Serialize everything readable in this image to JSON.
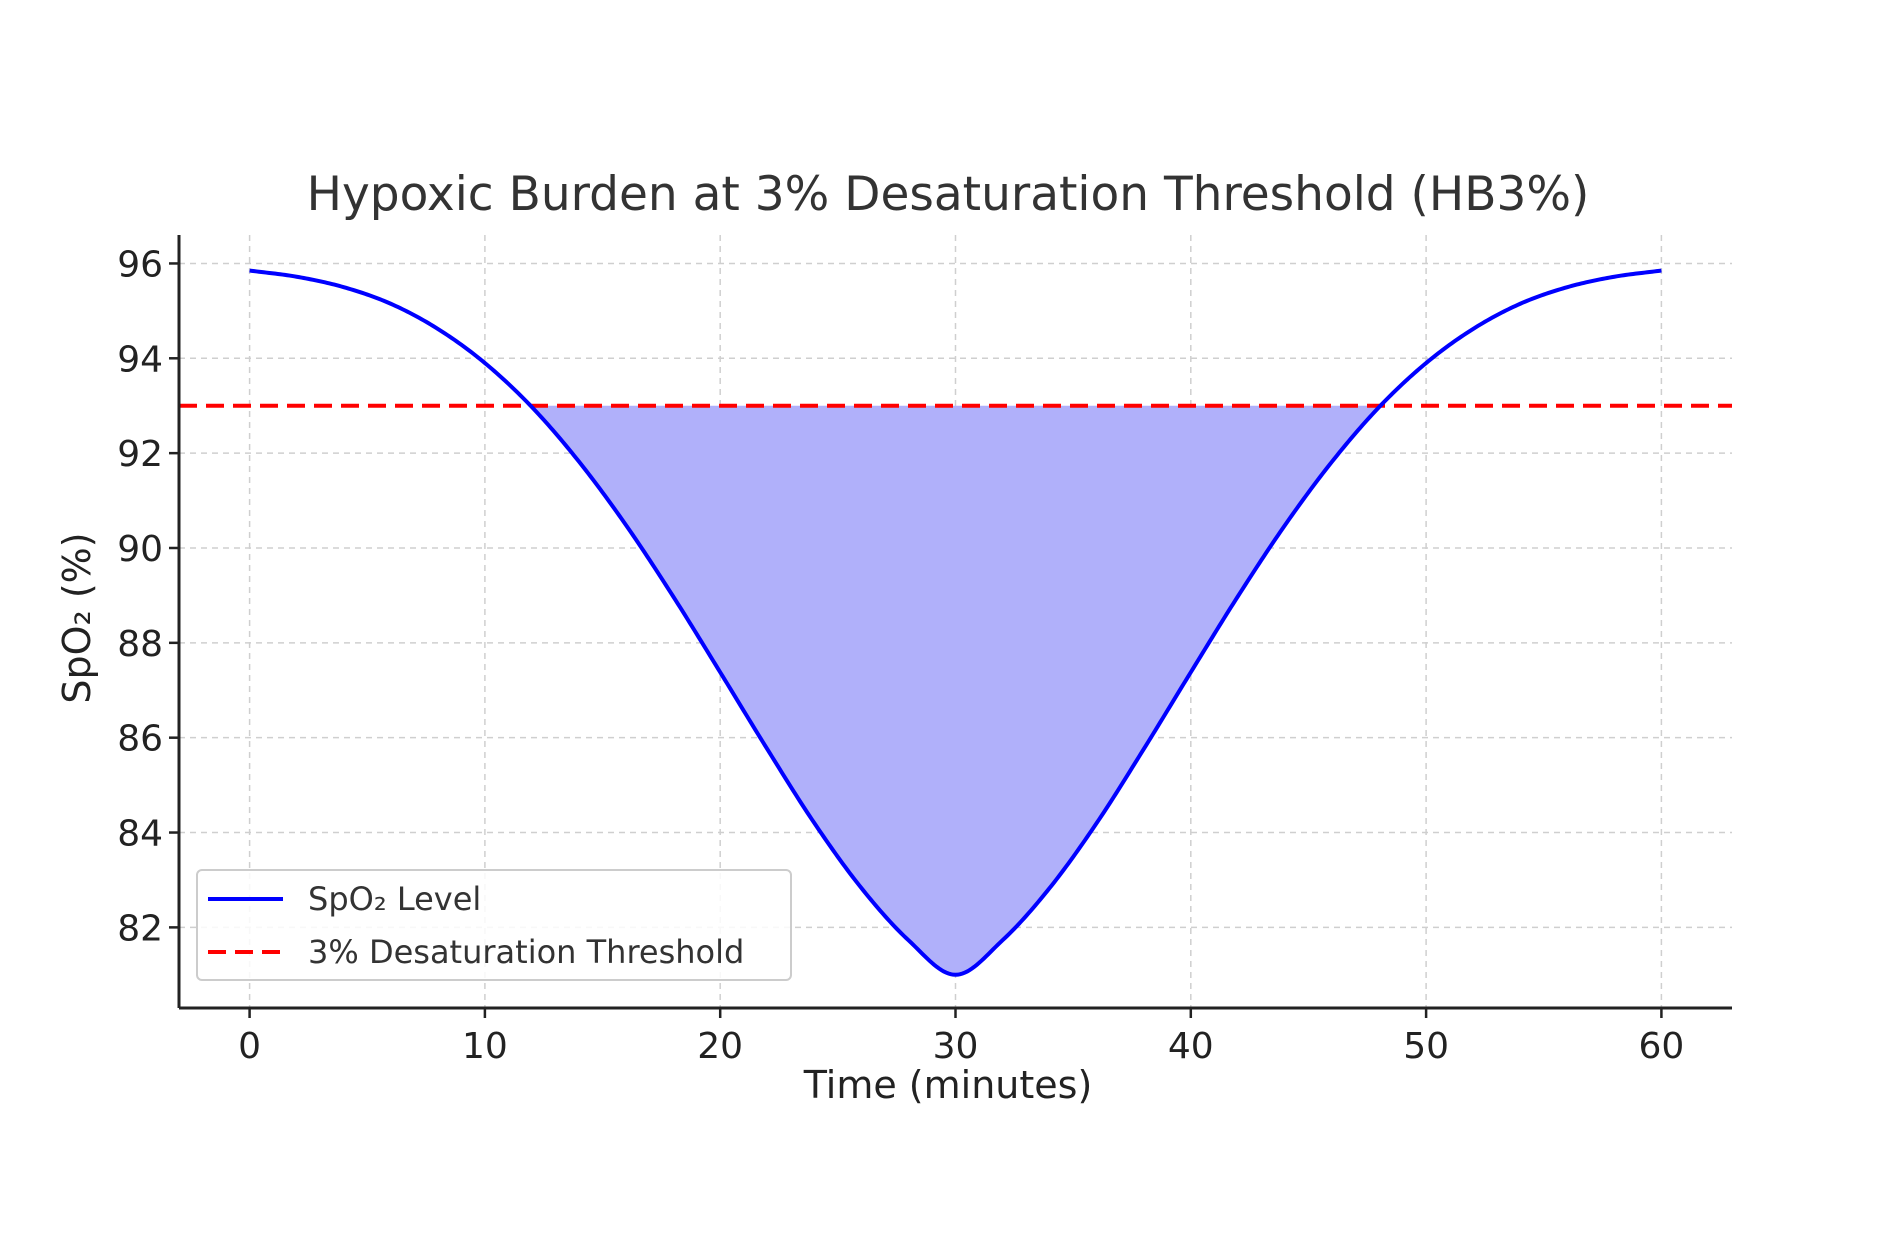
{
  "chart_data": {
    "type": "line",
    "title": "Hypoxic Burden at 3% Desaturation Threshold (HB3%)",
    "xlabel": "Time (minutes)",
    "ylabel": "SpO₂ (%)",
    "xlim": [
      -3,
      63
    ],
    "ylim": [
      80.3,
      96.6
    ],
    "xticks": [
      0,
      10,
      20,
      30,
      40,
      50,
      60
    ],
    "xtick_labels": [
      "0",
      "10",
      "20",
      "30",
      "40",
      "50",
      "60"
    ],
    "yticks": [
      82,
      84,
      86,
      88,
      90,
      92,
      94,
      96
    ],
    "ytick_labels": [
      "82",
      "84",
      "86",
      "88",
      "90",
      "92",
      "94",
      "96"
    ],
    "grid": true,
    "legend_position": "lower-left",
    "series": [
      {
        "name": "SpO₂ Level",
        "style": "solid",
        "color": "#0000ff",
        "x": [
          0,
          2,
          4,
          6,
          8,
          10,
          12,
          14,
          16,
          18,
          20,
          22,
          24,
          26,
          28,
          30,
          32,
          34,
          36,
          38,
          40,
          42,
          44,
          46,
          48,
          50,
          52,
          54,
          56,
          58,
          60
        ],
        "y": [
          95.85,
          95.72,
          95.5,
          95.15,
          94.62,
          93.9,
          92.97,
          91.82,
          90.48,
          88.98,
          87.38,
          85.76,
          84.2,
          82.83,
          81.73,
          81.0,
          81.73,
          82.83,
          84.2,
          85.76,
          87.38,
          88.98,
          90.48,
          91.82,
          92.97,
          93.9,
          94.62,
          95.15,
          95.5,
          95.72,
          95.85
        ]
      },
      {
        "name": "3% Desaturation Threshold",
        "style": "dashed",
        "color": "#ff0000",
        "y": 93.0
      }
    ],
    "fill_below_threshold": {
      "color": "#b0b0fa",
      "threshold": 93.0
    }
  }
}
